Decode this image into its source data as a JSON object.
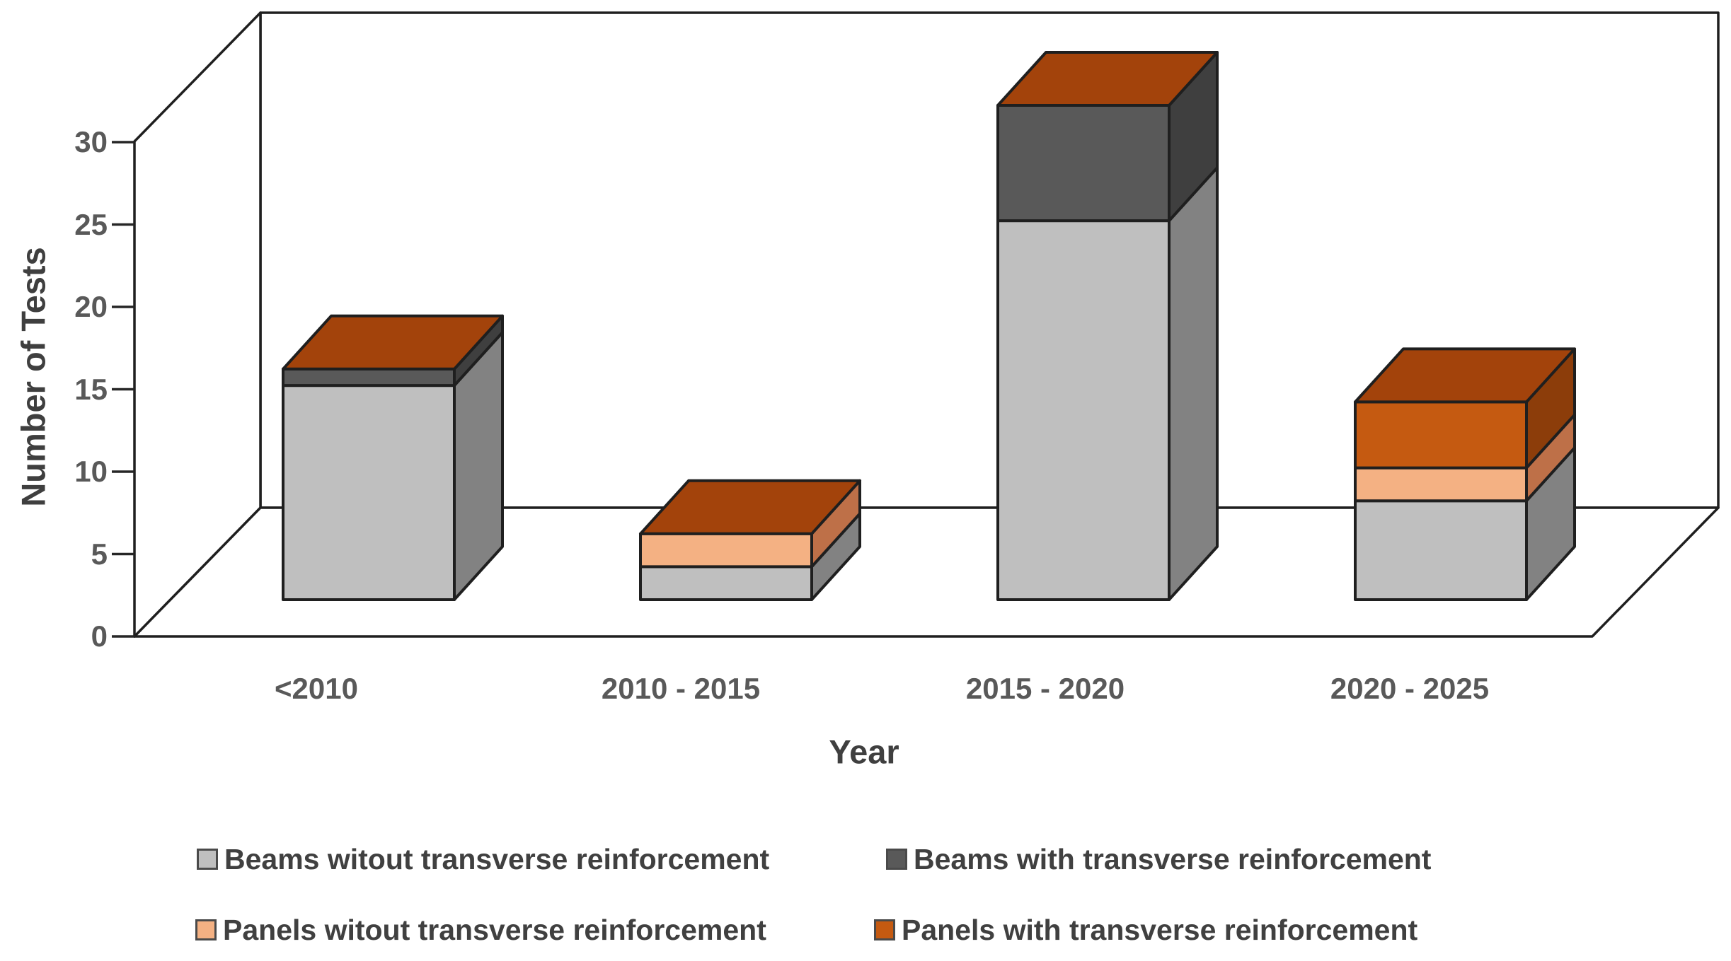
{
  "chart_data": {
    "type": "bar",
    "subtype": "3d-stacked-column",
    "title": "",
    "xlabel": "Year",
    "ylabel": "Number of Tests",
    "ylim": [
      0,
      30
    ],
    "yticks": [
      0,
      5,
      10,
      15,
      20,
      25,
      30
    ],
    "grid": false,
    "legend_position": "bottom",
    "background": "#ffffff",
    "outline_color": "#1f1f1f",
    "frame_color": "#262626",
    "cap_color": "#a3430b",
    "categories": [
      "<2010",
      "2010 - 2015",
      "2015 - 2020",
      "2020 - 2025"
    ],
    "series": [
      {
        "name": "Beams witout transverse reinforcement",
        "values": [
          13,
          2,
          23,
          6
        ],
        "front_color": "#bfbfbf",
        "side_color": "#828282"
      },
      {
        "name": "Beams with transverse reinforcement",
        "values": [
          1,
          0,
          7,
          0
        ],
        "front_color": "#595959",
        "side_color": "#3f3f3f"
      },
      {
        "name": "Panels witout transverse reinforcement",
        "values": [
          0,
          2,
          0,
          2
        ],
        "front_color": "#f4b183",
        "side_color": "#be7048"
      },
      {
        "name": "Panels with transverse reinforcement",
        "values": [
          0,
          0,
          0,
          4
        ],
        "front_color": "#c55a11",
        "side_color": "#8c3d0a"
      }
    ],
    "stack_totals": [
      14,
      4,
      30,
      12
    ]
  },
  "axes": {
    "y_title": "Number of Tests",
    "x_title": "Year"
  },
  "text_colors": {
    "tick": "#595959",
    "axis_title": "#3f3f3f",
    "legend": "#404040"
  }
}
